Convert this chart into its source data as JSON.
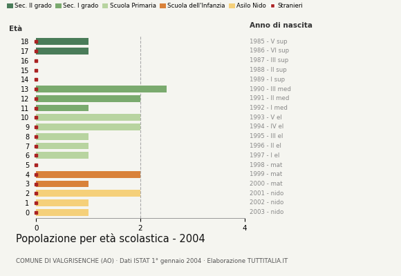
{
  "ages": [
    18,
    17,
    16,
    15,
    14,
    13,
    12,
    11,
    10,
    9,
    8,
    7,
    6,
    5,
    4,
    3,
    2,
    1,
    0
  ],
  "right_labels": [
    "1985 - V sup",
    "1986 - VI sup",
    "1987 - III sup",
    "1988 - II sup",
    "1989 - I sup",
    "1990 - III med",
    "1991 - II med",
    "1992 - I med",
    "1993 - V el",
    "1994 - IV el",
    "1995 - III el",
    "1996 - II el",
    "1997 - I el",
    "1998 - mat",
    "1999 - mat",
    "2000 - mat",
    "2001 - nido",
    "2002 - nido",
    "2003 - nido"
  ],
  "values": [
    1,
    1,
    0,
    0,
    0,
    2.5,
    2,
    1,
    2,
    2,
    1,
    1,
    1,
    0,
    2,
    1,
    2,
    1,
    1
  ],
  "colors": [
    "#4a7c59",
    "#4a7c59",
    "#4a7c59",
    "#4a7c59",
    "#4a7c59",
    "#7aaa6e",
    "#7aaa6e",
    "#7aaa6e",
    "#b8d4a0",
    "#b8d4a0",
    "#b8d4a0",
    "#b8d4a0",
    "#b8d4a0",
    "#b8d4a0",
    "#d9823a",
    "#d9823a",
    "#f5d07a",
    "#f5d07a",
    "#f5d07a"
  ],
  "legend_labels": [
    "Sec. II grado",
    "Sec. I grado",
    "Scuola Primaria",
    "Scuola dell'Infanzia",
    "Asilo Nido",
    "Stranieri"
  ],
  "legend_colors": [
    "#4a7c59",
    "#7aaa6e",
    "#b8d4a0",
    "#d9823a",
    "#f5d07a",
    "#aa2222"
  ],
  "title": "Popolazione per età scolastica - 2004",
  "subtitle": "COMUNE DI VALGRISENCHE (AO) · Dati ISTAT 1° gennaio 2004 · Elaborazione TUTTITALIA.IT",
  "xlabel_left": "Età",
  "xlabel_right": "Anno di nascita",
  "xlim": [
    0,
    4
  ],
  "xticks": [
    0,
    2,
    4
  ],
  "background_color": "#f5f5f0",
  "bar_height": 0.72,
  "dot_color": "#aa2222",
  "dot_size": 3.5
}
